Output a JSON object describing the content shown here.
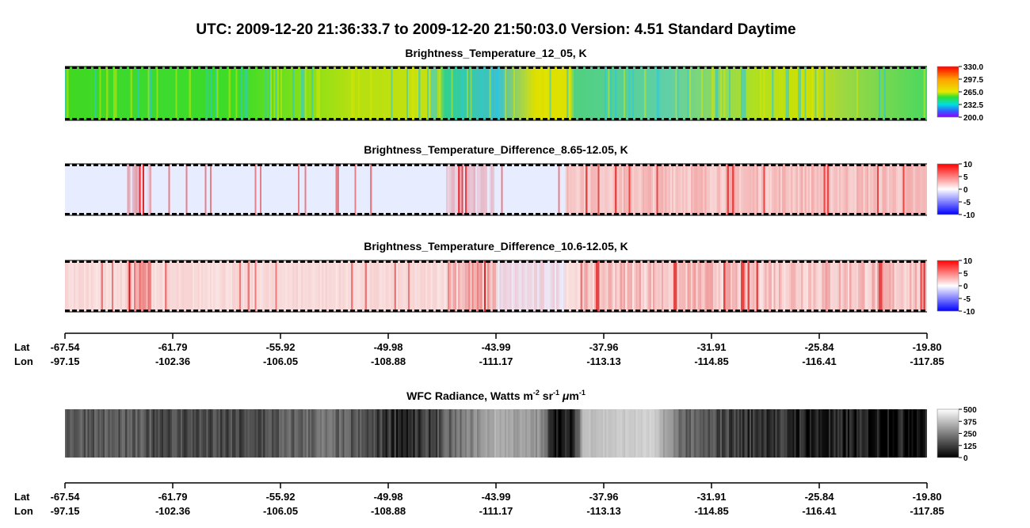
{
  "title": "UTC:  2009-12-20   21:36:33.7  to  2009-12-20   21:50:03.0    Version: 4.51  Standard Daytime",
  "panels": [
    {
      "title": [
        "Brightness_Temperature_12_05, K"
      ],
      "colorbar_labels": [
        "330.0",
        "297.5",
        "265.0",
        "232.5",
        "200.0"
      ]
    },
    {
      "title": [
        "Brightness_Temperature_Difference_8.65-12.05, K"
      ],
      "colorbar_labels": [
        "10",
        "5",
        "0",
        "-5",
        "-10"
      ]
    },
    {
      "title": [
        "Brightness_Temperature_Difference_10.6-12.05, K"
      ],
      "colorbar_labels": [
        "10",
        "5",
        "0",
        "-5",
        "-10"
      ]
    },
    {
      "title": [
        "WFC Radiance, Watts m",
        "-2",
        " sr",
        "-1",
        " ",
        "μ",
        "m",
        "-1"
      ],
      "colorbar_labels": [
        "500",
        "375",
        "250",
        "125",
        "0"
      ]
    }
  ],
  "axes": [
    {
      "lat_label": "Lat",
      "lon_label": "Lon",
      "lat": [
        "-67.54",
        "-61.79",
        "-55.92",
        "-49.98",
        "-43.99",
        "-37.96",
        "-31.91",
        "-25.84",
        "-19.80"
      ],
      "lon": [
        "-97.15",
        "-102.36",
        "-106.05",
        "-108.88",
        "-111.17",
        "-113.13",
        "-114.85",
        "-116.41",
        "-117.85"
      ]
    },
    {
      "lat_label": "Lat",
      "lon_label": "Lon",
      "lat": [
        "-67.54",
        "-61.79",
        "-55.92",
        "-49.98",
        "-43.99",
        "-37.96",
        "-31.91",
        "-25.84",
        "-19.80"
      ],
      "lon": [
        "-97.15",
        "-102.36",
        "-106.05",
        "-108.88",
        "-111.17",
        "-113.13",
        "-114.85",
        "-116.41",
        "-117.85"
      ]
    }
  ]
}
